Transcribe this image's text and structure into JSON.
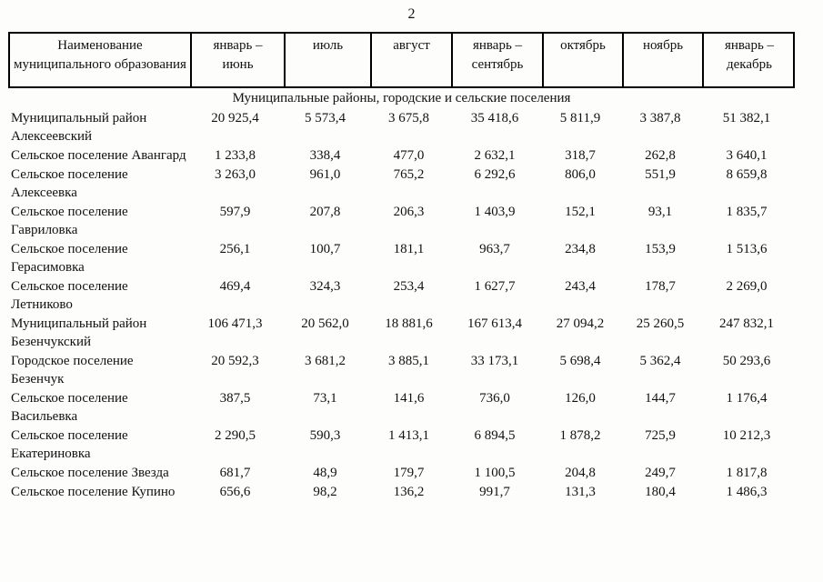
{
  "page": {
    "number": "2"
  },
  "table": {
    "header": {
      "name_col": "Наименование муниципального образования",
      "cols": [
        "январь –\nиюнь",
        "июль",
        "август",
        "январь –\nсентябрь",
        "октябрь",
        "ноябрь",
        "январь –\nдекабрь"
      ]
    },
    "section_title": "Муниципальные районы, городские и сельские поселения",
    "rows": [
      {
        "name": "Муниципальный район Алексеевский",
        "values": [
          "20 925,4",
          "5 573,4",
          "3 675,8",
          "35 418,6",
          "5 811,9",
          "3 387,8",
          "51 382,1"
        ]
      },
      {
        "name": "Сельское поселение Авангард",
        "values": [
          "1 233,8",
          "338,4",
          "477,0",
          "2 632,1",
          "318,7",
          "262,8",
          "3 640,1"
        ]
      },
      {
        "name": "Сельское поселение Алексеевка",
        "values": [
          "3 263,0",
          "961,0",
          "765,2",
          "6 292,6",
          "806,0",
          "551,9",
          "8 659,8"
        ]
      },
      {
        "name": "Сельское поселение Гавриловка",
        "values": [
          "597,9",
          "207,8",
          "206,3",
          "1 403,9",
          "152,1",
          "93,1",
          "1 835,7"
        ]
      },
      {
        "name": "Сельское поселение Герасимовка",
        "values": [
          "256,1",
          "100,7",
          "181,1",
          "963,7",
          "234,8",
          "153,9",
          "1 513,6"
        ]
      },
      {
        "name": "Сельское поселение Летниково",
        "values": [
          "469,4",
          "324,3",
          "253,4",
          "1 627,7",
          "243,4",
          "178,7",
          "2 269,0"
        ]
      },
      {
        "name": "Муниципальный район Безенчукский",
        "values": [
          "106 471,3",
          "20 562,0",
          "18 881,6",
          "167 613,4",
          "27 094,2",
          "25 260,5",
          "247 832,1"
        ]
      },
      {
        "name": "Городское поселение Безенчук",
        "values": [
          "20 592,3",
          "3 681,2",
          "3 885,1",
          "33 173,1",
          "5 698,4",
          "5 362,4",
          "50 293,6"
        ]
      },
      {
        "name": "Сельское поселение Васильевка",
        "values": [
          "387,5",
          "73,1",
          "141,6",
          "736,0",
          "126,0",
          "144,7",
          "1 176,4"
        ]
      },
      {
        "name": "Сельское поселение Екатериновка",
        "values": [
          "2 290,5",
          "590,3",
          "1 413,1",
          "6 894,5",
          "1 878,2",
          "725,9",
          "10 212,3"
        ]
      },
      {
        "name": "Сельское поселение Звезда",
        "values": [
          "681,7",
          "48,9",
          "179,7",
          "1 100,5",
          "204,8",
          "249,7",
          "1 817,8"
        ]
      },
      {
        "name": "Сельское поселение Купино",
        "values": [
          "656,6",
          "98,2",
          "136,2",
          "991,7",
          "131,3",
          "180,4",
          "1 486,3"
        ]
      }
    ]
  }
}
